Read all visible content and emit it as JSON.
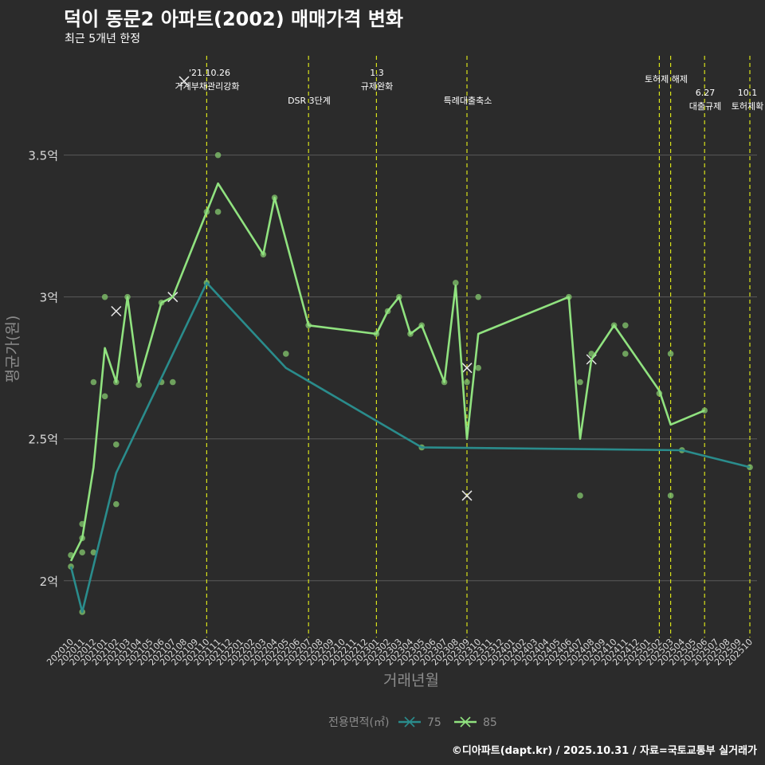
{
  "title": "덕이 동문2 아파트(2002) 매매가격 변화",
  "subtitle": "최근 5개년 한정",
  "caption": "©디아파트(dapt.kr) / 2025.10.31 / 자료=국토교통부 실거래가",
  "colors": {
    "background": "#2b2b2b",
    "grid": "#5a5a5a",
    "series75": "#2a8c8c",
    "series85": "#90e27f",
    "points": "#7fbf6a",
    "events": "#d8e21a",
    "text": "#ffffff",
    "axis_text": "#d9d9d9",
    "axis_title": "#8c8c8c"
  },
  "chart_data": {
    "type": "line",
    "xlabel": "거래년월",
    "ylabel": "평균가(원)",
    "y_unit": "억",
    "ylim": [
      1.8,
      3.85
    ],
    "yticks": [
      2,
      2.5,
      3,
      3.5
    ],
    "ytick_labels": [
      "2억",
      "2.5억",
      "3억",
      "3.5억"
    ],
    "months": [
      "202010",
      "202011",
      "202012",
      "202101",
      "202102",
      "202103",
      "202104",
      "202105",
      "202106",
      "202107",
      "202108",
      "202109",
      "202110",
      "202111",
      "202112",
      "202201",
      "202202",
      "202203",
      "202204",
      "202205",
      "202206",
      "202207",
      "202208",
      "202209",
      "202210",
      "202211",
      "202212",
      "202301",
      "202302",
      "202303",
      "202304",
      "202305",
      "202306",
      "202307",
      "202308",
      "202309",
      "202310",
      "202311",
      "202312",
      "202401",
      "202402",
      "202403",
      "202404",
      "202405",
      "202406",
      "202407",
      "202408",
      "202409",
      "202410",
      "202411",
      "202412",
      "202501",
      "202502",
      "202503",
      "202504",
      "202505",
      "202506",
      "202507",
      "202508",
      "202509",
      "202510"
    ],
    "legend_title": "전용면적(㎡)",
    "series": [
      {
        "name": "75",
        "line": [
          [
            "202010",
            2.05
          ],
          [
            "202011",
            1.89
          ],
          [
            "202102",
            2.38
          ],
          [
            "202110",
            3.05
          ],
          [
            "202205",
            2.75
          ],
          [
            "202305",
            2.47
          ],
          [
            "202504",
            2.46
          ],
          [
            "202510",
            2.4
          ]
        ],
        "points": [
          [
            "202010",
            2.05
          ],
          [
            "202011",
            1.89
          ],
          [
            "202102",
            2.48
          ],
          [
            "202102",
            2.27
          ],
          [
            "202106",
            2.7
          ],
          [
            "202107",
            2.7
          ],
          [
            "202110",
            3.05
          ],
          [
            "202205",
            2.8
          ],
          [
            "202305",
            2.47
          ],
          [
            "202504",
            2.46
          ],
          [
            "202510",
            2.4
          ]
        ],
        "cancelled": []
      },
      {
        "name": "85",
        "line": [
          [
            "202010",
            2.07
          ],
          [
            "202011",
            2.15
          ],
          [
            "202012",
            2.4
          ],
          [
            "202101",
            2.82
          ],
          [
            "202102",
            2.7
          ],
          [
            "202103",
            3.0
          ],
          [
            "202104",
            2.7
          ],
          [
            "202106",
            2.98
          ],
          [
            "202107",
            3.0
          ],
          [
            "202110",
            3.3
          ],
          [
            "202111",
            3.4
          ],
          [
            "202203",
            3.15
          ],
          [
            "202204",
            3.35
          ],
          [
            "202207",
            2.9
          ],
          [
            "202301",
            2.87
          ],
          [
            "202302",
            2.95
          ],
          [
            "202303",
            3.0
          ],
          [
            "202304",
            2.87
          ],
          [
            "202305",
            2.9
          ],
          [
            "202307",
            2.7
          ],
          [
            "202308",
            3.04
          ],
          [
            "202309",
            2.5
          ],
          [
            "202310",
            2.87
          ],
          [
            "202406",
            3.0
          ],
          [
            "202407",
            2.5
          ],
          [
            "202408",
            2.78
          ],
          [
            "202410",
            2.9
          ],
          [
            "202502",
            2.67
          ],
          [
            "202503",
            2.55
          ],
          [
            "202506",
            2.6
          ]
        ],
        "points": [
          [
            "202010",
            2.09
          ],
          [
            "202011",
            2.2
          ],
          [
            "202011",
            2.15
          ],
          [
            "202011",
            2.1
          ],
          [
            "202012",
            2.7
          ],
          [
            "202012",
            2.1
          ],
          [
            "202101",
            3.0
          ],
          [
            "202101",
            2.65
          ],
          [
            "202102",
            2.7
          ],
          [
            "202103",
            3.0
          ],
          [
            "202104",
            2.69
          ],
          [
            "202106",
            2.98
          ],
          [
            "202110",
            3.3
          ],
          [
            "202111",
            3.5
          ],
          [
            "202111",
            3.3
          ],
          [
            "202203",
            3.15
          ],
          [
            "202204",
            3.35
          ],
          [
            "202207",
            2.9
          ],
          [
            "202301",
            2.87
          ],
          [
            "202302",
            2.95
          ],
          [
            "202303",
            3.0
          ],
          [
            "202304",
            2.87
          ],
          [
            "202305",
            2.9
          ],
          [
            "202307",
            2.7
          ],
          [
            "202308",
            3.05
          ],
          [
            "202309",
            2.7
          ],
          [
            "202310",
            3.0
          ],
          [
            "202310",
            2.75
          ],
          [
            "202406",
            3.0
          ],
          [
            "202407",
            2.7
          ],
          [
            "202407",
            2.3
          ],
          [
            "202408",
            2.8
          ],
          [
            "202410",
            2.9
          ],
          [
            "202411",
            2.9
          ],
          [
            "202411",
            2.8
          ],
          [
            "202502",
            2.66
          ],
          [
            "202503",
            2.8
          ],
          [
            "202503",
            2.3
          ],
          [
            "202506",
            2.6
          ]
        ],
        "cancelled": [
          [
            "202102",
            2.95
          ],
          [
            "202107",
            3.0
          ],
          [
            "202108",
            3.76
          ],
          [
            "202309",
            2.75
          ],
          [
            "202309",
            2.3
          ],
          [
            "202408",
            2.78
          ]
        ]
      }
    ],
    "events": [
      {
        "month": "202110",
        "date": "'21.10.26",
        "label": "가계부채관리강화"
      },
      {
        "month": "202207",
        "date": "",
        "label": "DSR 3단계"
      },
      {
        "month": "202301",
        "date": "1.3",
        "label": "규제완화"
      },
      {
        "month": "202309",
        "date": "",
        "label": "특례대출축소"
      },
      {
        "month": "202502",
        "date": "",
        "label": "토허제 해제"
      },
      {
        "month": "202503",
        "date": "",
        "label": ""
      },
      {
        "month": "202506",
        "date": "6.27",
        "label": "대출규제"
      },
      {
        "month": "202510",
        "date": "10.1",
        "label": "토허제확"
      }
    ]
  }
}
